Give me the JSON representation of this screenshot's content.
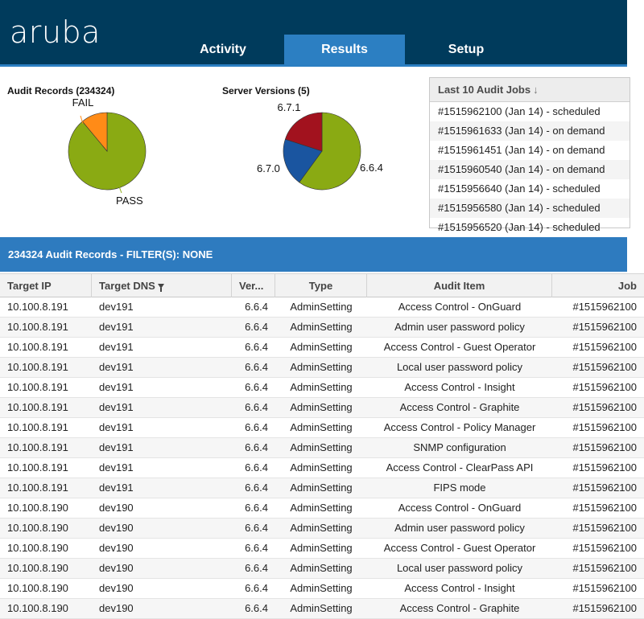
{
  "header": {
    "logo": "aruba",
    "tabs": [
      {
        "label": "Activity",
        "active": false
      },
      {
        "label": "Results",
        "active": true
      },
      {
        "label": "Setup",
        "active": false
      }
    ],
    "colors": {
      "bar": "#003b5c",
      "active_tab": "#2c7fc2"
    }
  },
  "audit_chart": {
    "title": "Audit Records (234324)",
    "labels": {
      "fail": "FAIL",
      "pass": "PASS"
    }
  },
  "versions_chart": {
    "title": "Server Versions (5)",
    "labels": {
      "v671": "6.7.1",
      "v670": "6.7.0",
      "v664": "6.6.4"
    }
  },
  "chart_data": [
    {
      "type": "pie",
      "title": "Audit Records (234324)",
      "slices": [
        {
          "label": "PASS",
          "value": 0.89,
          "color": "#8aaa13"
        },
        {
          "label": "FAIL",
          "value": 0.11,
          "color": "#ff8b17"
        }
      ]
    },
    {
      "type": "pie",
      "title": "Server Versions (5)",
      "slices": [
        {
          "label": "6.6.4",
          "value": 0.6,
          "color": "#8aaa13"
        },
        {
          "label": "6.7.0",
          "value": 0.2,
          "color": "#1a55a0"
        },
        {
          "label": "6.7.1",
          "value": 0.2,
          "color": "#a2121e"
        }
      ]
    }
  ],
  "jobs": {
    "header": "Last 10 Audit Jobs",
    "sort_icon": "arrow-down-icon",
    "items": [
      "#1515962100 (Jan 14) - scheduled",
      "#1515961633 (Jan 14) - on demand",
      "#1515961451 (Jan 14) - on demand",
      "#1515960540 (Jan 14) - on demand",
      "#1515956640 (Jan 14) - scheduled",
      "#1515956580 (Jan 14) - scheduled",
      "#1515956520 (Jan 14) - scheduled"
    ]
  },
  "records": {
    "banner": "234324 Audit Records - FILTER(S): NONE",
    "columns": [
      "Target IP",
      "Target DNS",
      "Ver...",
      "Type",
      "Audit Item",
      "Job"
    ],
    "filter_icon": "filter-icon",
    "rows": [
      [
        "10.100.8.191",
        "dev191",
        "6.6.4",
        "AdminSetting",
        "Access Control - OnGuard",
        "#1515962100"
      ],
      [
        "10.100.8.191",
        "dev191",
        "6.6.4",
        "AdminSetting",
        "Admin user password policy",
        "#1515962100"
      ],
      [
        "10.100.8.191",
        "dev191",
        "6.6.4",
        "AdminSetting",
        "Access Control - Guest Operator",
        "#1515962100"
      ],
      [
        "10.100.8.191",
        "dev191",
        "6.6.4",
        "AdminSetting",
        "Local user password policy",
        "#1515962100"
      ],
      [
        "10.100.8.191",
        "dev191",
        "6.6.4",
        "AdminSetting",
        "Access Control - Insight",
        "#1515962100"
      ],
      [
        "10.100.8.191",
        "dev191",
        "6.6.4",
        "AdminSetting",
        "Access Control - Graphite",
        "#1515962100"
      ],
      [
        "10.100.8.191",
        "dev191",
        "6.6.4",
        "AdminSetting",
        "Access Control - Policy Manager",
        "#1515962100"
      ],
      [
        "10.100.8.191",
        "dev191",
        "6.6.4",
        "AdminSetting",
        "SNMP configuration",
        "#1515962100"
      ],
      [
        "10.100.8.191",
        "dev191",
        "6.6.4",
        "AdminSetting",
        "Access Control - ClearPass API",
        "#1515962100"
      ],
      [
        "10.100.8.191",
        "dev191",
        "6.6.4",
        "AdminSetting",
        "FIPS mode",
        "#1515962100"
      ],
      [
        "10.100.8.190",
        "dev190",
        "6.6.4",
        "AdminSetting",
        "Access Control - OnGuard",
        "#1515962100"
      ],
      [
        "10.100.8.190",
        "dev190",
        "6.6.4",
        "AdminSetting",
        "Admin user password policy",
        "#1515962100"
      ],
      [
        "10.100.8.190",
        "dev190",
        "6.6.4",
        "AdminSetting",
        "Access Control - Guest Operator",
        "#1515962100"
      ],
      [
        "10.100.8.190",
        "dev190",
        "6.6.4",
        "AdminSetting",
        "Local user password policy",
        "#1515962100"
      ],
      [
        "10.100.8.190",
        "dev190",
        "6.6.4",
        "AdminSetting",
        "Access Control - Insight",
        "#1515962100"
      ],
      [
        "10.100.8.190",
        "dev190",
        "6.6.4",
        "AdminSetting",
        "Access Control - Graphite",
        "#1515962100"
      ]
    ]
  }
}
